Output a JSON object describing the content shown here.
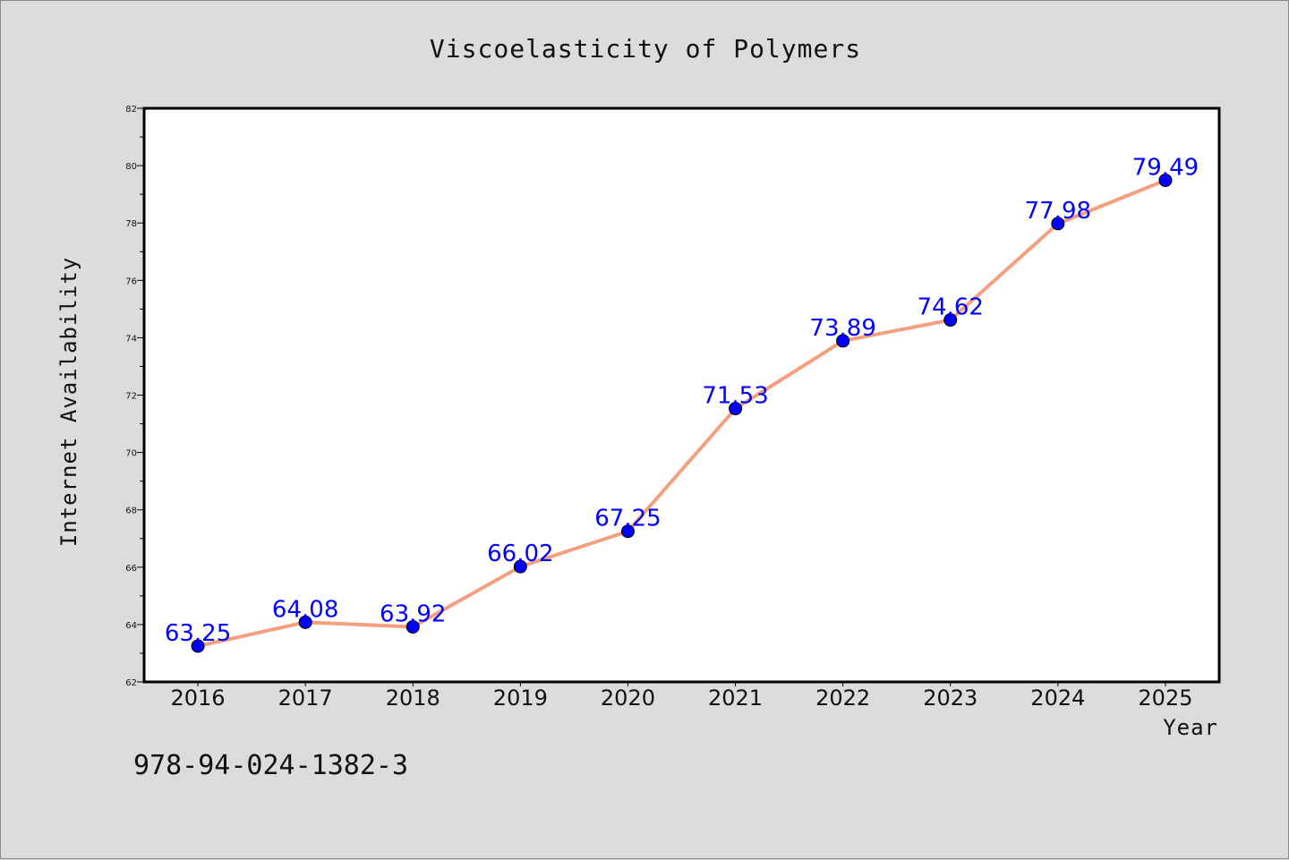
{
  "chart_data": {
    "type": "line",
    "title": "Viscoelasticity of Polymers",
    "xlabel": "Year",
    "ylabel": "Internet Availability",
    "categories": [
      "2016",
      "2017",
      "2018",
      "2019",
      "2020",
      "2021",
      "2022",
      "2023",
      "2024",
      "2025"
    ],
    "series": [
      {
        "values": [
          63.25,
          64.08,
          63.92,
          66.02,
          67.25,
          71.53,
          73.89,
          74.62,
          77.98,
          79.49
        ],
        "labels": [
          "63.25",
          "64.08",
          "63.92",
          "66.02",
          "67.25",
          "71.53",
          "73.89",
          "74.62",
          "77.98",
          "79.49"
        ]
      }
    ],
    "ylim": [
      62,
      82
    ],
    "yticks": [
      "62",
      "64",
      "66",
      "68",
      "70",
      "72",
      "74",
      "76",
      "78",
      "80",
      "82"
    ],
    "grid": false,
    "line_color": "#f4a07e",
    "marker_color": "#0000ff",
    "label_color": "#0000ff"
  },
  "footer": {
    "isbn": "978-94-024-1382-3"
  }
}
